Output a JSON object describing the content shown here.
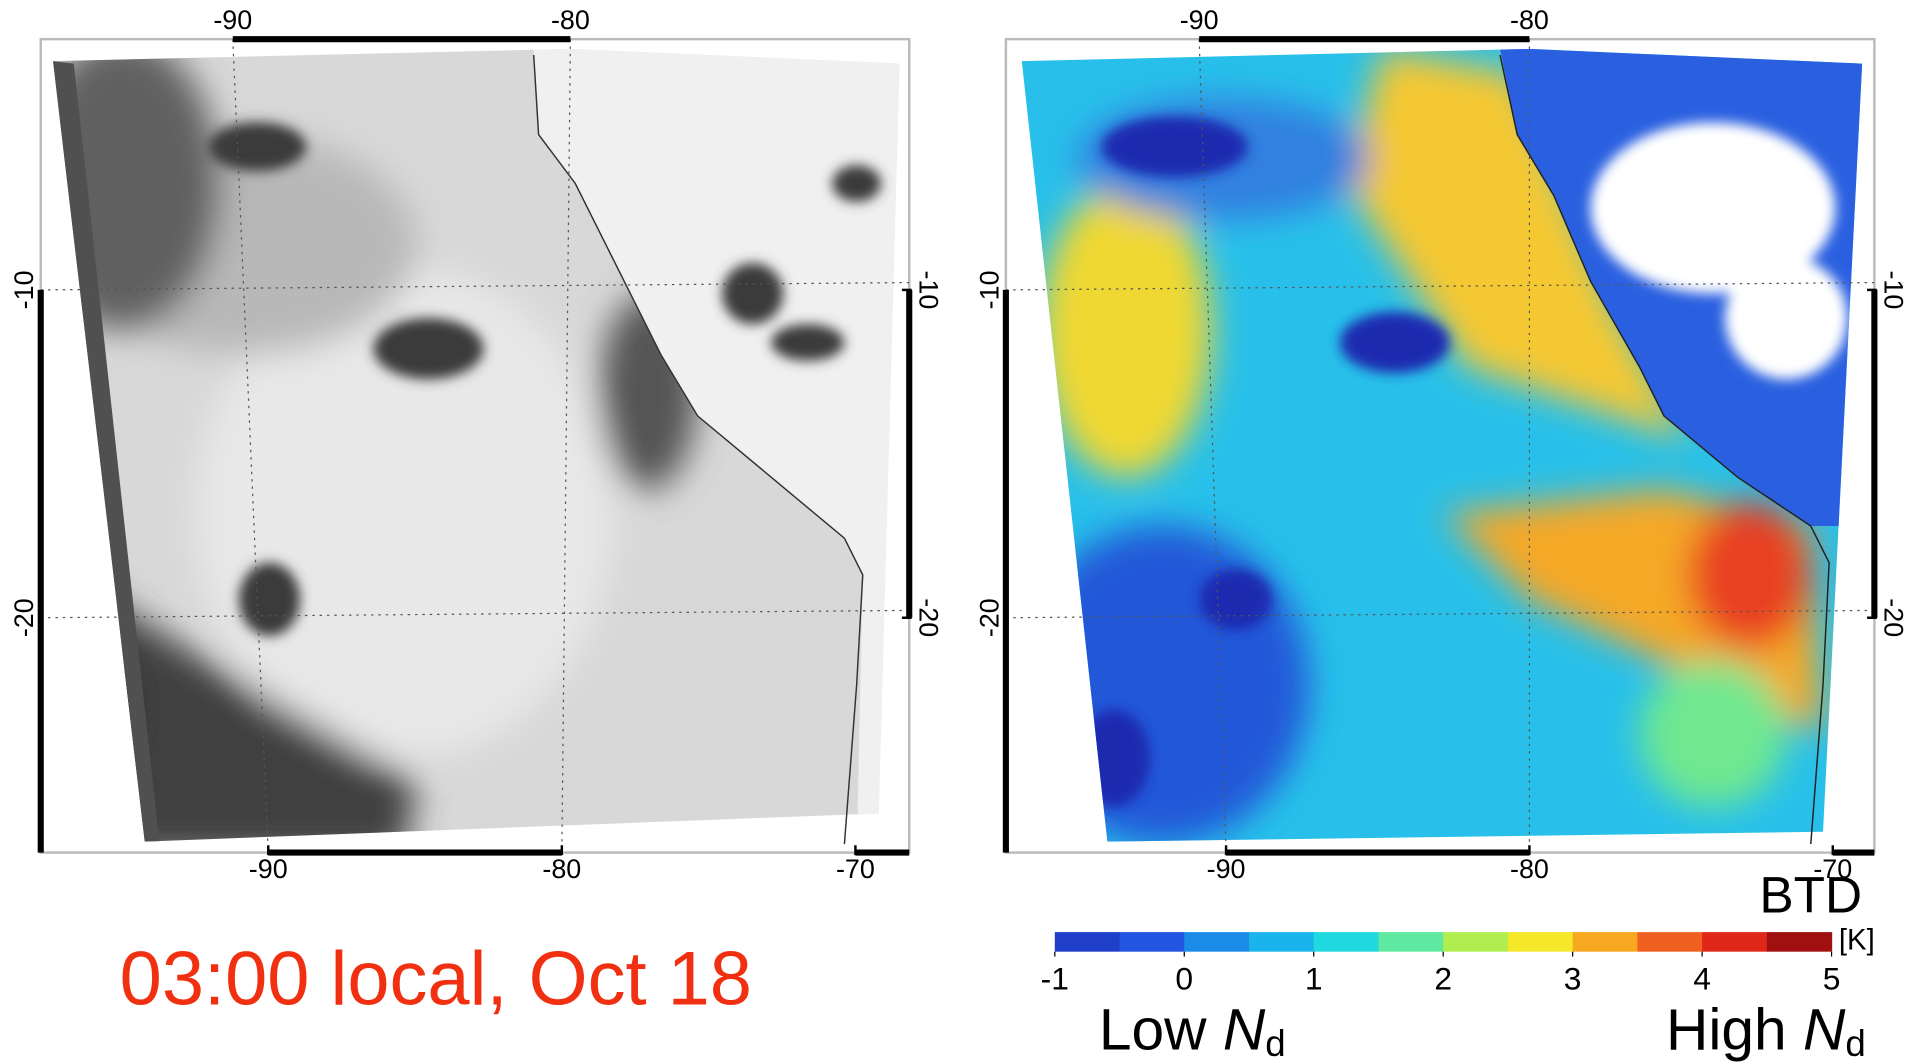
{
  "panels": [
    {
      "lon_ticks_top": [
        -90,
        -80
      ],
      "lon_ticks_bottom": [
        -90,
        -80,
        -70
      ],
      "lat_ticks_left": [
        -10,
        -20
      ],
      "lat_ticks_right": [
        -10,
        -20
      ]
    },
    {
      "lon_ticks_top": [
        -90,
        -80
      ],
      "lon_ticks_bottom": [
        -90,
        -80,
        -70
      ],
      "lat_ticks_left": [
        -10,
        -20
      ],
      "lat_ticks_right": [
        -10,
        -20
      ]
    }
  ],
  "caption": "03:00 local, Oct 18",
  "colorbar": {
    "title": "BTD",
    "unit": "[K]",
    "range": [
      -1,
      5
    ],
    "ticks": [
      -1,
      0,
      1,
      2,
      3,
      4,
      5
    ],
    "colors": [
      "#1f3fc8",
      "#2255e0",
      "#1a8ce8",
      "#1ab4ec",
      "#20d8e0",
      "#5fe8a0",
      "#b0ee50",
      "#f5e82a",
      "#f8a820",
      "#f06020",
      "#e02818",
      "#a01010"
    ],
    "low_label": {
      "text": "Low",
      "symbol": "N",
      "subscript": "d"
    },
    "high_label": {
      "text": "High",
      "symbol": "N",
      "subscript": "d"
    }
  }
}
